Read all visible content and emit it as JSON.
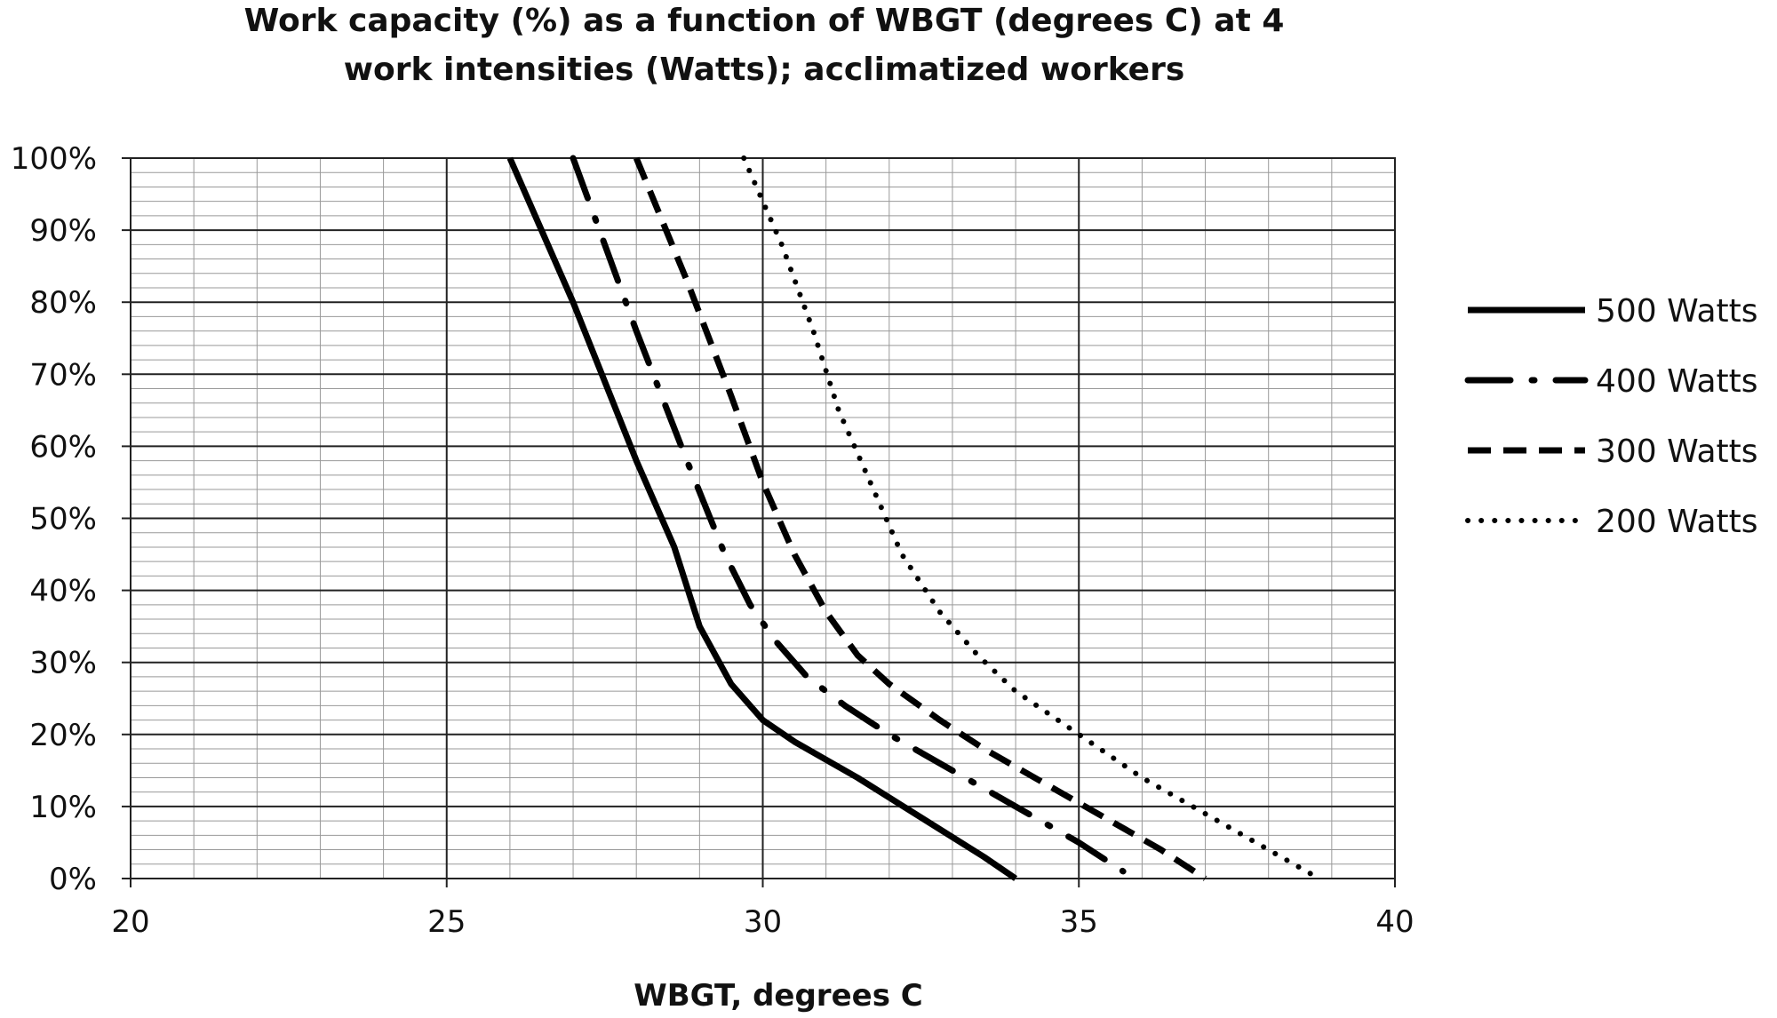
{
  "chart_data": {
    "type": "line",
    "title": "Work capacity (%) as a function of WBGT (degrees C) at 4 work intensities (Watts); acclimatized workers",
    "title_lines": [
      "Work capacity (%) as a function of WBGT (degrees C) at 4",
      "work intensities (Watts); acclimatized workers"
    ],
    "xlabel": "WBGT,  degrees C",
    "ylabel": "",
    "xlim": [
      20,
      40
    ],
    "ylim": [
      0,
      100
    ],
    "x_ticks": [
      20,
      25,
      30,
      35,
      40
    ],
    "x_tick_labels": [
      "20",
      "25",
      "30",
      "35",
      "40"
    ],
    "y_ticks": [
      0,
      10,
      20,
      30,
      40,
      50,
      60,
      70,
      80,
      90,
      100
    ],
    "y_tick_labels": [
      "0%",
      "10%",
      "20%",
      "30%",
      "40%",
      "50%",
      "60%",
      "70%",
      "80%",
      "90%",
      "100%"
    ],
    "grid": {
      "major_x_step": 5,
      "minor_x_step": 1,
      "minor_y_step": 2,
      "major_y_step": 10
    },
    "legend_position": "right",
    "series": [
      {
        "name": "500 Watts",
        "line_style": "solid",
        "color": "#000000",
        "points": [
          [
            26.0,
            100
          ],
          [
            27.0,
            80
          ],
          [
            28.0,
            58
          ],
          [
            28.6,
            46
          ],
          [
            29.0,
            35
          ],
          [
            29.5,
            27
          ],
          [
            30.0,
            22
          ],
          [
            30.5,
            19
          ],
          [
            31.5,
            14
          ],
          [
            32.5,
            8.5
          ],
          [
            33.5,
            3
          ],
          [
            34.0,
            0
          ]
        ]
      },
      {
        "name": "400 Watts",
        "line_style": "dashdot",
        "color": "#000000",
        "points": [
          [
            27.0,
            100
          ],
          [
            28.0,
            76
          ],
          [
            28.8,
            58
          ],
          [
            29.4,
            45
          ],
          [
            29.8,
            38
          ],
          [
            30.2,
            33
          ],
          [
            30.7,
            28
          ],
          [
            31.3,
            24
          ],
          [
            32.0,
            20
          ],
          [
            33.0,
            15
          ],
          [
            34.0,
            10
          ],
          [
            35.0,
            5
          ],
          [
            35.7,
            1
          ]
        ]
      },
      {
        "name": "300 Watts",
        "line_style": "dashed",
        "color": "#000000",
        "points": [
          [
            28.0,
            100
          ],
          [
            28.8,
            83
          ],
          [
            29.5,
            67
          ],
          [
            30.0,
            55
          ],
          [
            30.5,
            45
          ],
          [
            31.0,
            37
          ],
          [
            31.5,
            31
          ],
          [
            32.0,
            27
          ],
          [
            32.8,
            22
          ],
          [
            33.5,
            18
          ],
          [
            34.5,
            13
          ],
          [
            35.5,
            8
          ],
          [
            36.3,
            4
          ],
          [
            37.0,
            0
          ]
        ]
      },
      {
        "name": "200 Watts",
        "line_style": "dotted",
        "color": "#000000",
        "points": [
          [
            29.7,
            100
          ],
          [
            30.3,
            88
          ],
          [
            30.8,
            76
          ],
          [
            31.2,
            65
          ],
          [
            31.7,
            55
          ],
          [
            32.2,
            45
          ],
          [
            32.8,
            37
          ],
          [
            33.4,
            31
          ],
          [
            34.0,
            26
          ],
          [
            35.0,
            20
          ],
          [
            36.0,
            14
          ],
          [
            37.0,
            9
          ],
          [
            38.0,
            4
          ],
          [
            38.8,
            0
          ]
        ]
      }
    ]
  }
}
